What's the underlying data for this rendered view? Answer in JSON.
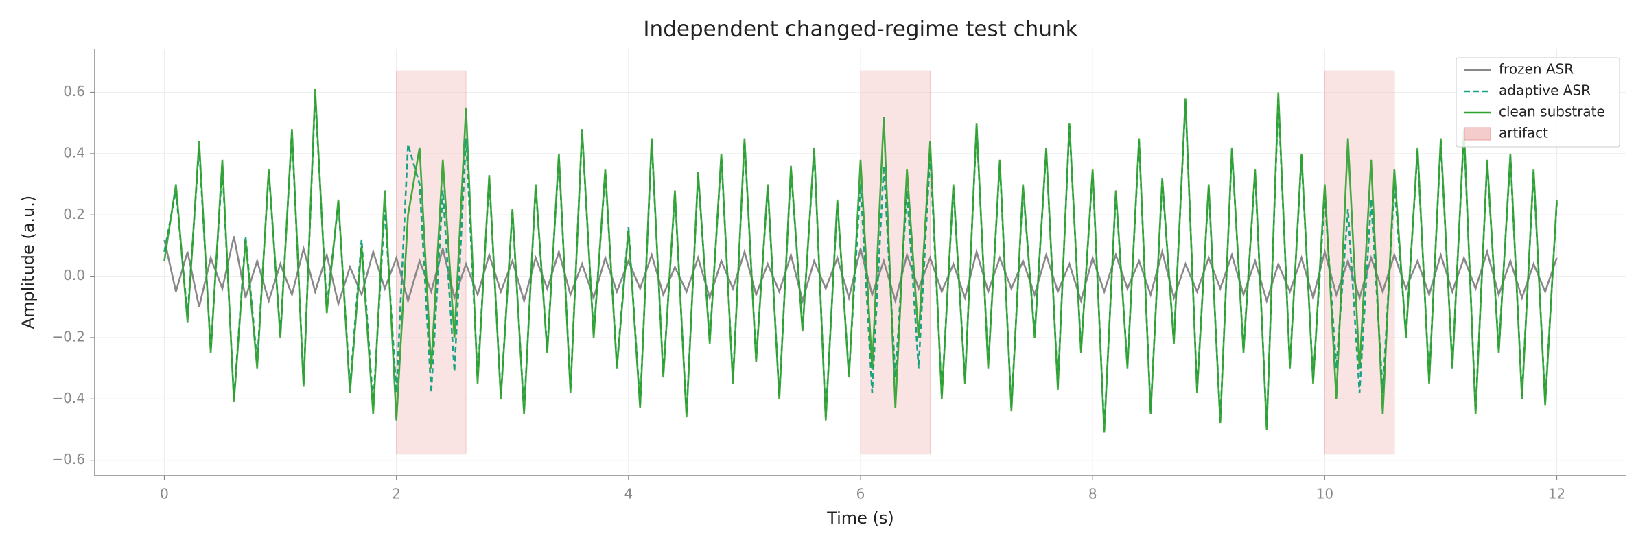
{
  "chart_data": {
    "type": "line",
    "title": "Independent changed-regime test chunk",
    "xlabel": "Time (s)",
    "ylabel": "Amplitude (a.u.)",
    "xlim": [
      -0.6,
      12.6
    ],
    "ylim": [
      -0.65,
      0.74
    ],
    "xticks": [
      0,
      2,
      4,
      6,
      8,
      10,
      12
    ],
    "yticks": [
      {
        "value": -0.6,
        "label": "−0.6"
      },
      {
        "value": -0.4,
        "label": "−0.4"
      },
      {
        "value": -0.2,
        "label": "−0.2"
      },
      {
        "value": 0,
        "label": "0.0"
      },
      0.2,
      0.4,
      0.6
    ],
    "grid": true,
    "legend": "upper right",
    "x": [
      0,
      0.1,
      0.2,
      0.3,
      0.4,
      0.5,
      0.6,
      0.7,
      0.8,
      0.9,
      1,
      1.1,
      1.2,
      1.3,
      1.4,
      1.5,
      1.6,
      1.7,
      1.8,
      1.9,
      2,
      2.1,
      2.2,
      2.3,
      2.4,
      2.5,
      2.6,
      2.7,
      2.8,
      2.9,
      3,
      3.1,
      3.2,
      3.3,
      3.4,
      3.5,
      3.6,
      3.7,
      3.8,
      3.9,
      4,
      4.1,
      4.2,
      4.3,
      4.4,
      4.5,
      4.6,
      4.7,
      4.8,
      4.9,
      5,
      5.1,
      5.2,
      5.3,
      5.4,
      5.5,
      5.6,
      5.7,
      5.8,
      5.9,
      6,
      6.1,
      6.2,
      6.3,
      6.4,
      6.5,
      6.6,
      6.7,
      6.8,
      6.9,
      7,
      7.1,
      7.2,
      7.3,
      7.4,
      7.5,
      7.6,
      7.7,
      7.8,
      7.9,
      8,
      8.1,
      8.2,
      8.3,
      8.4,
      8.5,
      8.6,
      8.7,
      8.8,
      8.9,
      9,
      9.1,
      9.2,
      9.3,
      9.4,
      9.5,
      9.6,
      9.7,
      9.8,
      9.9,
      10,
      10.1,
      10.2,
      10.3,
      10.4,
      10.5,
      10.6,
      10.7,
      10.8,
      10.9,
      11,
      11.1,
      11.2,
      11.3,
      11.4,
      11.5,
      11.6,
      11.7,
      11.8,
      11.9,
      12
    ],
    "series": [
      {
        "name": "frozen ASR",
        "color": "#888888",
        "dash": "none",
        "values": [
          0.12,
          -0.05,
          0.08,
          -0.1,
          0.06,
          -0.04,
          0.13,
          -0.07,
          0.05,
          -0.08,
          0.04,
          -0.06,
          0.09,
          -0.05,
          0.07,
          -0.09,
          0.03,
          -0.06,
          0.08,
          -0.04,
          0.06,
          -0.08,
          0.05,
          -0.05,
          0.09,
          -0.07,
          0.04,
          -0.06,
          0.07,
          -0.05,
          0.05,
          -0.08,
          0.06,
          -0.04,
          0.08,
          -0.06,
          0.04,
          -0.07,
          0.06,
          -0.05,
          0.05,
          -0.04,
          0.07,
          -0.06,
          0.03,
          -0.05,
          0.06,
          -0.07,
          0.05,
          -0.04,
          0.08,
          -0.06,
          0.04,
          -0.05,
          0.07,
          -0.08,
          0.05,
          -0.04,
          0.06,
          -0.07,
          0.09,
          -0.06,
          0.05,
          -0.08,
          0.07,
          -0.04,
          0.06,
          -0.05,
          0.04,
          -0.07,
          0.08,
          -0.05,
          0.06,
          -0.04,
          0.05,
          -0.06,
          0.07,
          -0.05,
          0.04,
          -0.08,
          0.06,
          -0.05,
          0.07,
          -0.04,
          0.05,
          -0.06,
          0.08,
          -0.07,
          0.04,
          -0.05,
          0.06,
          -0.04,
          0.07,
          -0.06,
          0.05,
          -0.08,
          0.04,
          -0.05,
          0.06,
          -0.07,
          0.08,
          -0.06,
          0.05,
          -0.07,
          0.06,
          -0.05,
          0.07,
          -0.04,
          0.05,
          -0.06,
          0.07,
          -0.05,
          0.06,
          -0.04,
          0.08,
          -0.06,
          0.05,
          -0.07,
          0.04,
          -0.05,
          0.06
        ]
      },
      {
        "name": "adaptive ASR",
        "color": "#1aa385",
        "dash": "8,5",
        "values": [
          0.08,
          0.28,
          -0.13,
          0.42,
          -0.24,
          0.36,
          -0.4,
          0.13,
          -0.28,
          0.34,
          -0.19,
          0.47,
          -0.35,
          0.59,
          -0.1,
          0.24,
          -0.36,
          0.12,
          -0.42,
          0.22,
          -0.38,
          0.43,
          0.3,
          -0.38,
          0.28,
          -0.31,
          0.45,
          -0.33,
          0.32,
          -0.39,
          0.21,
          -0.44,
          0.29,
          -0.24,
          0.39,
          -0.37,
          0.47,
          -0.19,
          0.34,
          -0.29,
          0.16,
          -0.42,
          0.44,
          -0.32,
          0.27,
          -0.45,
          0.33,
          -0.21,
          0.39,
          -0.34,
          0.44,
          -0.27,
          0.29,
          -0.39,
          0.35,
          -0.17,
          0.41,
          -0.46,
          0.24,
          -0.32,
          0.3,
          -0.38,
          0.36,
          -0.33,
          0.28,
          -0.3,
          0.4,
          -0.39,
          0.29,
          -0.34,
          0.49,
          -0.29,
          0.37,
          -0.43,
          0.29,
          -0.19,
          0.41,
          -0.36,
          0.49,
          -0.24,
          0.34,
          -0.5,
          0.27,
          -0.29,
          0.44,
          -0.44,
          0.31,
          -0.21,
          0.57,
          -0.37,
          0.29,
          -0.47,
          0.41,
          -0.24,
          0.34,
          -0.49,
          0.58,
          -0.29,
          0.39,
          -0.34,
          0.26,
          -0.3,
          0.22,
          -0.38,
          0.25,
          -0.38,
          0.3,
          -0.19,
          0.41,
          -0.34,
          0.44,
          -0.29,
          0.47,
          -0.44,
          0.37,
          -0.24,
          0.39,
          -0.39,
          0.34,
          -0.41,
          0.24
        ]
      },
      {
        "name": "clean substrate",
        "color": "#2ca02c",
        "dash": "none",
        "values": [
          0.05,
          0.3,
          -0.15,
          0.44,
          -0.25,
          0.38,
          -0.41,
          0.12,
          -0.3,
          0.35,
          -0.2,
          0.48,
          -0.36,
          0.61,
          -0.12,
          0.25,
          -0.38,
          0.1,
          -0.45,
          0.28,
          -0.47,
          0.2,
          0.42,
          -0.3,
          0.38,
          -0.2,
          0.55,
          -0.35,
          0.33,
          -0.4,
          0.22,
          -0.45,
          0.3,
          -0.25,
          0.4,
          -0.38,
          0.48,
          -0.2,
          0.35,
          -0.3,
          0.15,
          -0.43,
          0.45,
          -0.33,
          0.28,
          -0.46,
          0.34,
          -0.22,
          0.4,
          -0.35,
          0.45,
          -0.28,
          0.3,
          -0.4,
          0.36,
          -0.18,
          0.42,
          -0.47,
          0.25,
          -0.33,
          0.38,
          -0.3,
          0.52,
          -0.43,
          0.35,
          -0.2,
          0.44,
          -0.4,
          0.3,
          -0.35,
          0.5,
          -0.3,
          0.38,
          -0.44,
          0.3,
          -0.2,
          0.42,
          -0.37,
          0.5,
          -0.25,
          0.35,
          -0.51,
          0.28,
          -0.3,
          0.45,
          -0.45,
          0.32,
          -0.22,
          0.58,
          -0.38,
          0.3,
          -0.48,
          0.42,
          -0.25,
          0.35,
          -0.5,
          0.6,
          -0.3,
          0.4,
          -0.35,
          0.3,
          -0.4,
          0.45,
          -0.3,
          0.38,
          -0.45,
          0.35,
          -0.2,
          0.42,
          -0.35,
          0.45,
          -0.3,
          0.48,
          -0.45,
          0.38,
          -0.25,
          0.4,
          -0.4,
          0.35,
          -0.42,
          0.25
        ]
      }
    ],
    "artifact": {
      "name": "artifact",
      "color": "#f4cccc",
      "spans": [
        [
          2,
          2.6
        ],
        [
          6,
          6.6
        ],
        [
          10,
          10.6
        ]
      ],
      "y_range": [
        -0.58,
        0.67
      ]
    }
  }
}
